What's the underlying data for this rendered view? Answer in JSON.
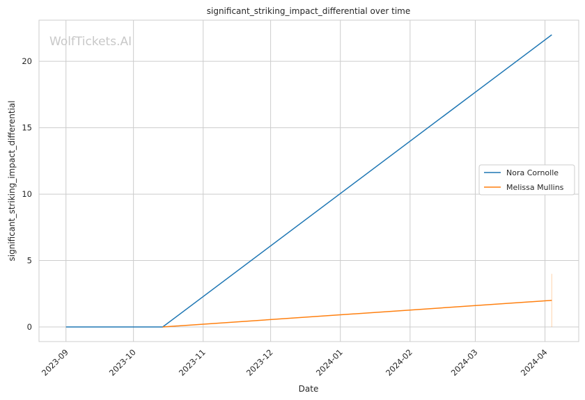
{
  "chart_data": {
    "type": "line",
    "title": "significant_striking_impact_differential over time",
    "xlabel": "Date",
    "ylabel": "significant_striking_impact_differential",
    "watermark": "WolfTickets.AI",
    "x_ticks": [
      "2023-09",
      "2023-10",
      "2023-11",
      "2023-12",
      "2024-01",
      "2024-02",
      "2024-03",
      "2024-04"
    ],
    "y_ticks": [
      0,
      5,
      10,
      15,
      20
    ],
    "xlim": [
      "2023-08-20",
      "2024-04-16"
    ],
    "ylim": [
      -1.1,
      23.1
    ],
    "grid": true,
    "legend_position": "center-right",
    "series": [
      {
        "name": "Nora Cornolle",
        "color": "#1f77b4",
        "points": [
          {
            "x": "2023-09-01",
            "y": 0
          },
          {
            "x": "2023-10-14",
            "y": 0
          },
          {
            "x": "2024-04-04",
            "y": 22
          }
        ]
      },
      {
        "name": "Melissa Mullins",
        "color": "#ff7f0e",
        "points": [
          {
            "x": "2023-10-14",
            "y": 0
          },
          {
            "x": "2024-04-04",
            "y": 2
          }
        ]
      }
    ]
  }
}
